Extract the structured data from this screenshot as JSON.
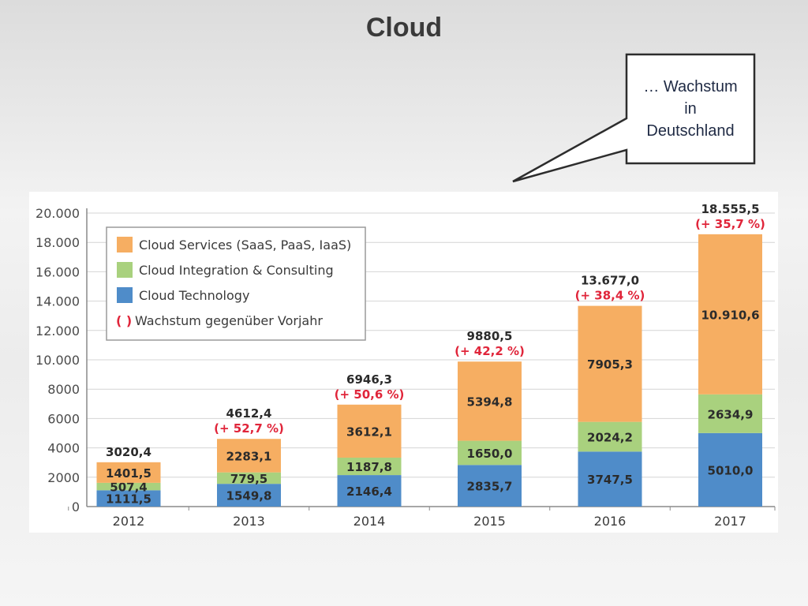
{
  "slide": {
    "title": "Cloud"
  },
  "callout": {
    "lines": [
      "… Wachstum",
      "in",
      "Deutschland"
    ]
  },
  "chart_data": {
    "type": "bar",
    "stacked": true,
    "categories": [
      "2012",
      "2013",
      "2014",
      "2015",
      "2016",
      "2017"
    ],
    "ylim": [
      0,
      20000
    ],
    "yticks": [
      0,
      2000,
      4000,
      6000,
      8000,
      10000,
      12000,
      14000,
      16000,
      18000,
      20000
    ],
    "ytick_labels": [
      "0",
      "2000",
      "4000",
      "6000",
      "8000",
      "10.000",
      "12.000",
      "14.000",
      "16.000",
      "18.000",
      "20.000"
    ],
    "grid": true,
    "legend_position": "top-left",
    "series": [
      {
        "name": "Cloud Technology",
        "color": "#4f8cc9",
        "values": [
          1111.5,
          1549.8,
          2146.4,
          2835.7,
          3747.5,
          5010.0
        ],
        "labels": [
          "1111,5",
          "1549,8",
          "2146,4",
          "2835,7",
          "3747,5",
          "5010,0"
        ]
      },
      {
        "name": "Cloud Integration & Consulting",
        "color": "#a9d17e",
        "values": [
          507.4,
          779.5,
          1187.8,
          1650.0,
          2024.2,
          2634.9
        ],
        "labels": [
          "507,4",
          "779,5",
          "1187,8",
          "1650,0",
          "2024,2",
          "2634,9"
        ]
      },
      {
        "name": "Cloud Services (SaaS, PaaS, IaaS)",
        "color": "#f6ae62",
        "values": [
          1401.5,
          2283.1,
          3612.1,
          5394.8,
          7905.3,
          10910.6
        ],
        "labels": [
          "1401,5",
          "2283,1",
          "3612,1",
          "5394,8",
          "7905,3",
          "10.910,6"
        ]
      }
    ],
    "totals": [
      3020.4,
      4612.4,
      6946.3,
      9880.5,
      13677.0,
      18555.5
    ],
    "total_labels": [
      "3020,4",
      "4612,4",
      "6946,3",
      "9880,5",
      "13.677,0",
      "18.555,5"
    ],
    "growth_labels": [
      "",
      "(+ 52,7 %)",
      "(+ 50,6 %)",
      "(+ 42,2 %)",
      "(+ 38,4 %)",
      "(+ 35,7 %)"
    ],
    "growth_color": "#e0253a",
    "legend_growth_marker": "( )",
    "legend_growth_text": "Wachstum gegenüber Vorjahr"
  }
}
